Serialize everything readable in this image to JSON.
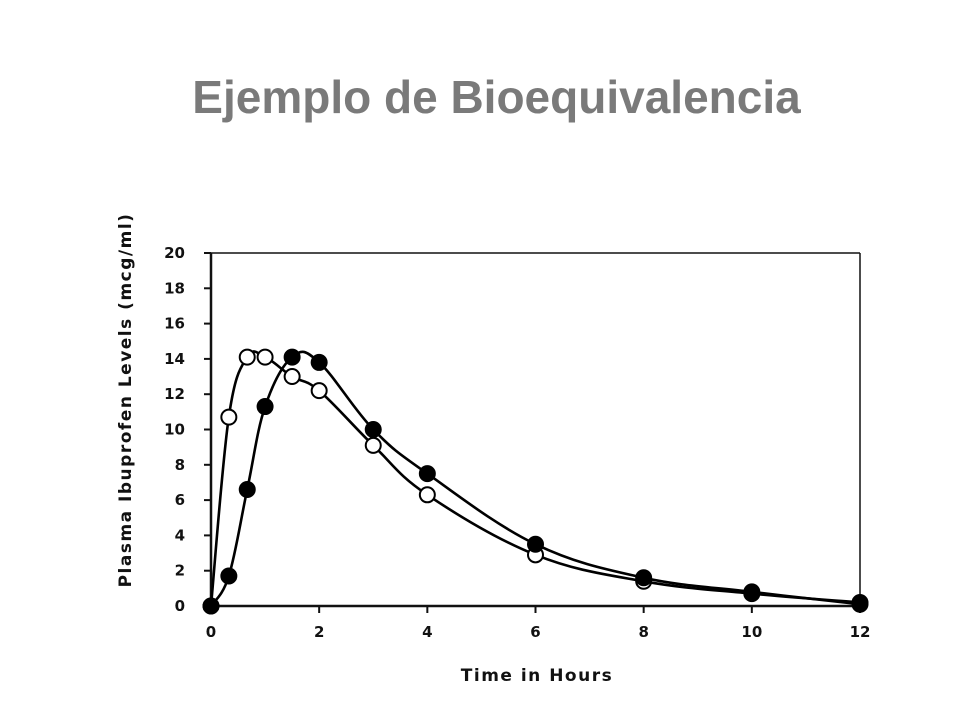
{
  "slide": {
    "title": "Ejemplo de Bioequivalencia"
  },
  "chart_data": {
    "type": "line",
    "title": "",
    "xlabel": "Time in Hours",
    "ylabel": "Plasma Ibuprofen Levels (mcg/ml)",
    "xlim": [
      0,
      12
    ],
    "ylim": [
      0,
      20
    ],
    "xticks": [
      0,
      2,
      4,
      6,
      8,
      10,
      12
    ],
    "yticks": [
      0,
      2,
      4,
      6,
      8,
      10,
      12,
      14,
      16,
      18,
      20
    ],
    "grid": false,
    "legend": "none",
    "series": [
      {
        "marker": "open-circle",
        "color": "#000000",
        "points": [
          {
            "x": 0,
            "y": 0
          },
          {
            "x": 0.33,
            "y": 10.7
          },
          {
            "x": 0.67,
            "y": 14.1
          },
          {
            "x": 1.0,
            "y": 14.1
          },
          {
            "x": 1.5,
            "y": 13.0
          },
          {
            "x": 2.0,
            "y": 12.2
          },
          {
            "x": 3.0,
            "y": 9.1
          },
          {
            "x": 4.0,
            "y": 6.3
          },
          {
            "x": 6.0,
            "y": 2.9
          },
          {
            "x": 8.0,
            "y": 1.4
          },
          {
            "x": 10.0,
            "y": 0.7
          },
          {
            "x": 12.0,
            "y": 0.2
          }
        ]
      },
      {
        "marker": "filled-circle",
        "color": "#000000",
        "points": [
          {
            "x": 0,
            "y": 0
          },
          {
            "x": 0.33,
            "y": 1.7
          },
          {
            "x": 0.67,
            "y": 6.6
          },
          {
            "x": 1.0,
            "y": 11.3
          },
          {
            "x": 1.5,
            "y": 14.1
          },
          {
            "x": 2.0,
            "y": 13.8
          },
          {
            "x": 3.0,
            "y": 10.0
          },
          {
            "x": 4.0,
            "y": 7.5
          },
          {
            "x": 6.0,
            "y": 3.5
          },
          {
            "x": 8.0,
            "y": 1.6
          },
          {
            "x": 10.0,
            "y": 0.8
          },
          {
            "x": 12.0,
            "y": 0.1
          }
        ]
      }
    ]
  }
}
